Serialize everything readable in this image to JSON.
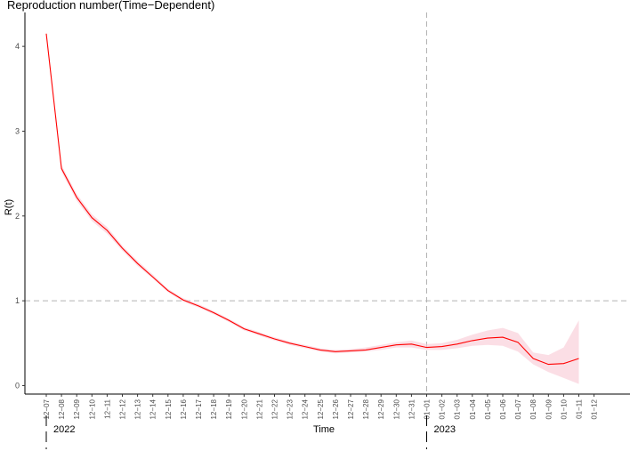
{
  "chart_data": {
    "type": "line",
    "title": "Reproduction number(Time−Dependent)",
    "xlabel": "Time",
    "ylabel": "R(t)",
    "ylim": [
      -0.1,
      4.4
    ],
    "yticks": [
      0,
      1,
      2,
      3,
      4
    ],
    "categories": [
      "12−07",
      "12−08",
      "12−09",
      "12−10",
      "12−11",
      "12−12",
      "12−13",
      "12−14",
      "12−15",
      "12−16",
      "12−17",
      "12−18",
      "12−19",
      "12−20",
      "12−21",
      "12−22",
      "12−23",
      "12−24",
      "12−25",
      "12−26",
      "12−27",
      "12−28",
      "12−29",
      "12−30",
      "12−31",
      "01−01",
      "01−02",
      "01−03",
      "01−04",
      "01−05",
      "01−06",
      "01−07",
      "01−08",
      "01−09",
      "01−10",
      "01−11",
      "01−12"
    ],
    "series": [
      {
        "values": [
          4.15,
          2.56,
          2.22,
          1.98,
          1.83,
          1.62,
          1.44,
          1.28,
          1.12,
          1.01,
          0.94,
          0.86,
          0.77,
          0.67,
          0.61,
          0.55,
          0.5,
          0.46,
          0.42,
          0.4,
          0.41,
          0.42,
          0.45,
          0.48,
          0.49,
          0.45,
          0.46,
          0.49,
          0.53,
          0.56,
          0.57,
          0.51,
          0.32,
          0.25,
          0.26,
          0.32,
          null
        ],
        "lower": [
          4.15,
          2.52,
          2.18,
          1.94,
          1.79,
          1.59,
          1.41,
          1.26,
          1.1,
          0.99,
          0.92,
          0.84,
          0.75,
          0.65,
          0.59,
          0.53,
          0.48,
          0.44,
          0.4,
          0.38,
          0.39,
          0.4,
          0.42,
          0.45,
          0.45,
          0.42,
          0.42,
          0.44,
          0.47,
          0.48,
          0.47,
          0.4,
          0.25,
          0.16,
          0.09,
          0.02,
          null
        ],
        "upper": [
          4.15,
          2.6,
          2.26,
          2.02,
          1.87,
          1.65,
          1.47,
          1.31,
          1.14,
          1.03,
          0.96,
          0.88,
          0.79,
          0.69,
          0.63,
          0.57,
          0.52,
          0.48,
          0.44,
          0.42,
          0.43,
          0.45,
          0.48,
          0.51,
          0.53,
          0.49,
          0.5,
          0.54,
          0.6,
          0.65,
          0.68,
          0.62,
          0.39,
          0.36,
          0.45,
          0.77,
          null
        ],
        "color": "#ff0000",
        "band_color": "#f8c8d4"
      }
    ],
    "reference_lines": {
      "y": 1,
      "x": "01−01"
    },
    "year_labels": [
      "2022",
      "2023"
    ],
    "grid": false,
    "legend": "none"
  }
}
